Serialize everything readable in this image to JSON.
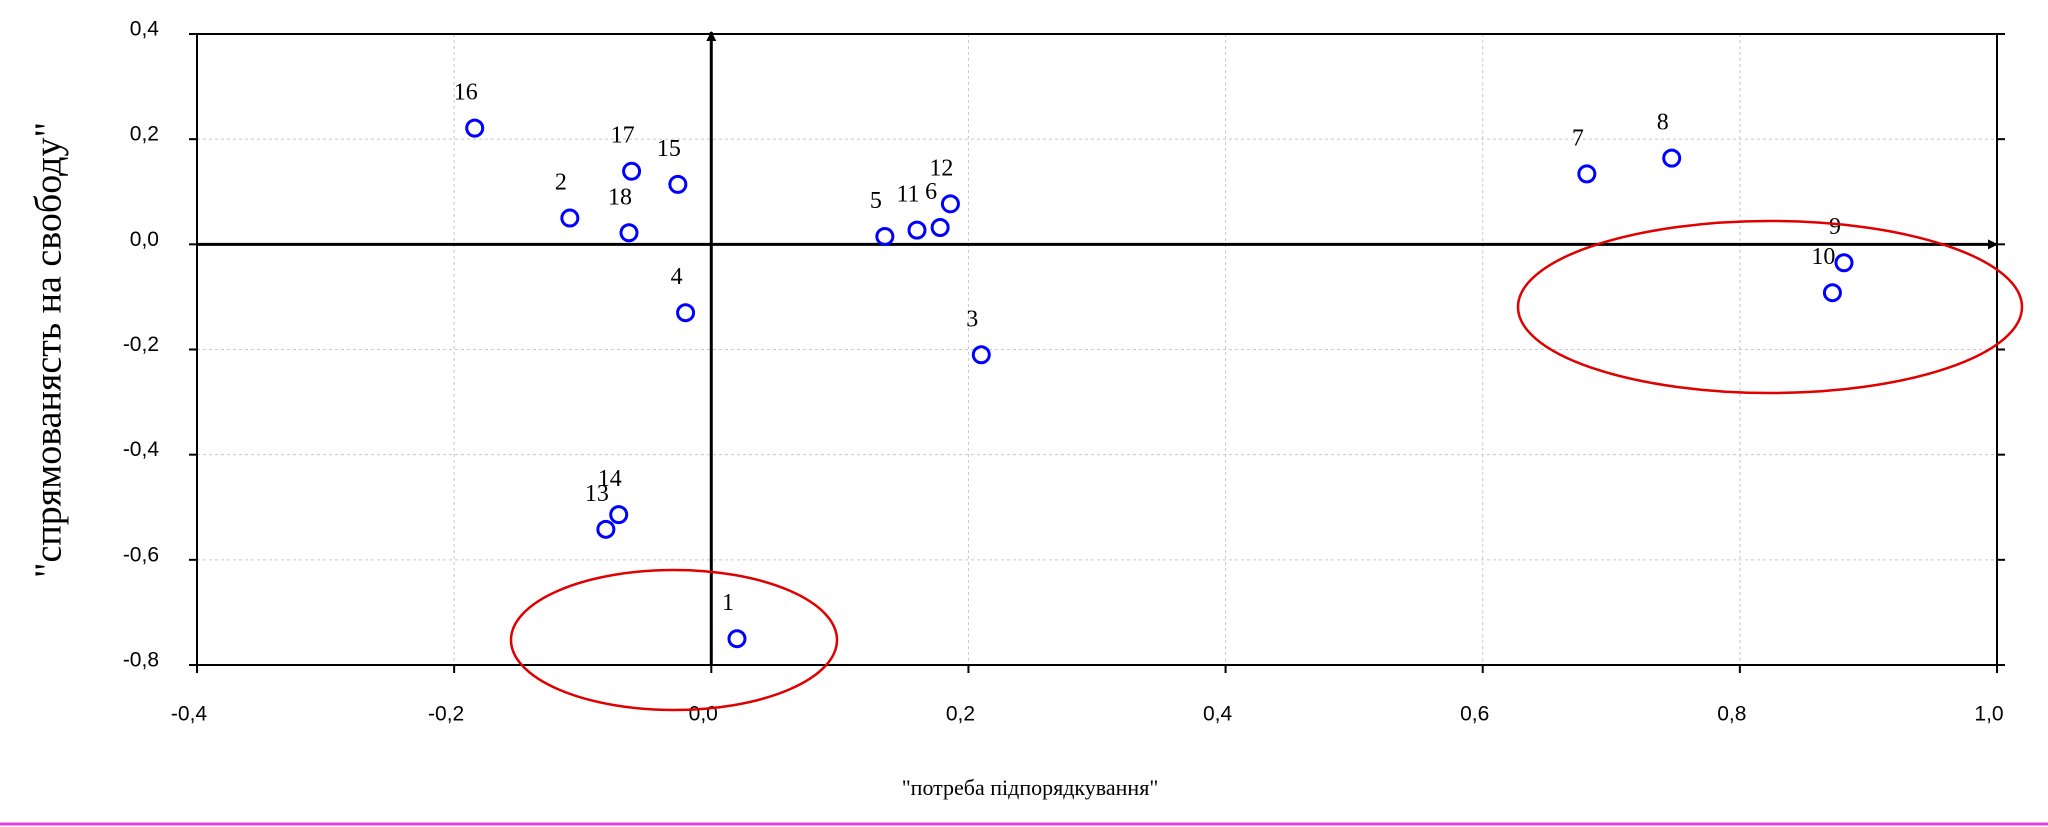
{
  "chart_data": {
    "type": "scatter",
    "x_label": "\"потреба підпорядкування\"",
    "y_label": "\"спрямованясть на свободу\"",
    "xlim": [
      -0.4,
      1.0
    ],
    "ylim": [
      -0.8,
      0.4
    ],
    "xticks": [
      {
        "value": -0.4,
        "label": "-0,4"
      },
      {
        "value": -0.2,
        "label": "-0,2"
      },
      {
        "value": 0,
        "label": "0,0"
      },
      {
        "value": 0.2,
        "label": "0,2"
      },
      {
        "value": 0.4,
        "label": "0,4"
      },
      {
        "value": 0.6,
        "label": "0,6"
      },
      {
        "value": 0.8,
        "label": "0,8"
      },
      {
        "value": 1.0,
        "label": "1,0"
      }
    ],
    "yticks": [
      {
        "value": -0.8,
        "label": "-0,8"
      },
      {
        "value": -0.6,
        "label": "-0,6"
      },
      {
        "value": -0.4,
        "label": "-0,4"
      },
      {
        "value": -0.2,
        "label": "-0,2"
      },
      {
        "value": 0,
        "label": "0,0"
      },
      {
        "value": 0.2,
        "label": "0,2"
      },
      {
        "value": 0.4,
        "label": "0,4"
      }
    ],
    "grid": true,
    "series": [
      {
        "color": "#0000ff",
        "point_labels": [
          "1",
          "2",
          "3",
          "4",
          "5",
          "6",
          "7",
          "8",
          "9",
          "10",
          "11",
          "12",
          "13",
          "14",
          "15",
          "16",
          "17",
          "18"
        ],
        "x": [
          0.02,
          -0.11,
          0.21,
          -0.02,
          0.135,
          0.178,
          0.681,
          0.747,
          0.881,
          0.872,
          0.16,
          0.186,
          -0.082,
          -0.072,
          -0.026,
          -0.184,
          -0.062,
          -0.064
        ],
        "values": [
          -0.75,
          0.05,
          -0.21,
          -0.13,
          0.015,
          0.032,
          0.134,
          0.164,
          -0.035,
          -0.092,
          0.027,
          0.077,
          -0.542,
          -0.514,
          0.114,
          0.221,
          0.139,
          0.022
        ]
      }
    ]
  }
}
